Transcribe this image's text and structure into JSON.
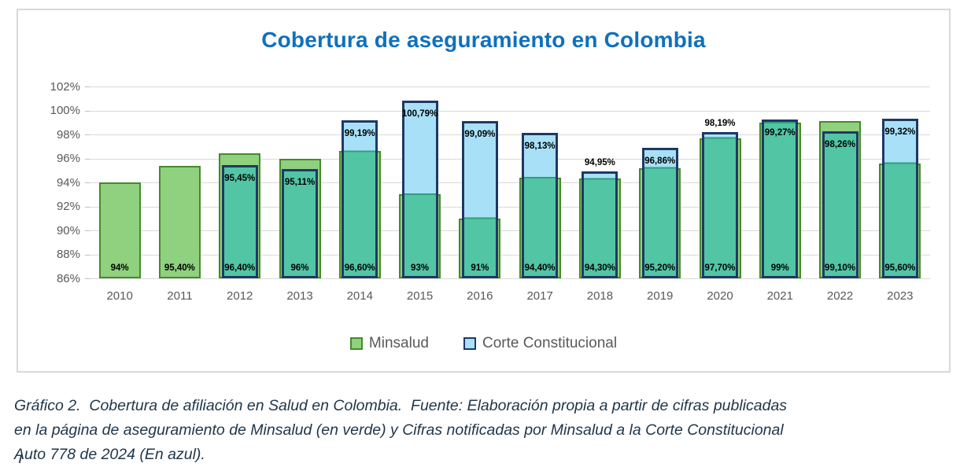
{
  "title": "Cobertura de aseguramiento en Colombia",
  "colors": {
    "title_blue": "#0F71BC",
    "minsalud_fill": "#8FD17E",
    "minsalud_border": "#468A2A",
    "corte_fill_overlap_teal": "#52C5A4",
    "corte_fill_light_blue": "#A8E1F7",
    "corte_border_navy": "#1F3864",
    "overlap_boundary_line": "#2FA07A",
    "gridline": "#D9D9D9",
    "axis_text": "#595959",
    "data_label": "#000000",
    "caption_text": "#20374A",
    "card_border": "#D9D9D9"
  },
  "chart_data": {
    "type": "bar",
    "title": "Cobertura de aseguramiento en Colombia",
    "categories": [
      "2010",
      "2011",
      "2012",
      "2013",
      "2014",
      "2015",
      "2016",
      "2017",
      "2018",
      "2019",
      "2020",
      "2021",
      "2022",
      "2023"
    ],
    "series": [
      {
        "name": "Minsalud",
        "values": [
          94,
          95.4,
          96.4,
          96,
          96.6,
          93,
          91,
          94.4,
          94.3,
          95.2,
          97.7,
          99,
          99.1,
          95.6
        ],
        "labels": [
          "94%",
          "95,40%",
          "96,40%",
          "96%",
          "96,60%",
          "93%",
          "91%",
          "94,40%",
          "94,30%",
          "95,20%",
          "97,70%",
          "99%",
          "99,10%",
          "95,60%"
        ]
      },
      {
        "name": "Corte Constitucional",
        "values": [
          null,
          null,
          95.45,
          95.11,
          99.19,
          100.79,
          99.09,
          98.13,
          94.95,
          96.86,
          98.19,
          99.27,
          98.26,
          99.32
        ],
        "labels": [
          "",
          "",
          "95,45%",
          "95,11%",
          "99,19%",
          "100,79%",
          "99,09%",
          "98,13%",
          "94,95%",
          "96,86%",
          "98,19%",
          "99,27%",
          "98,26%",
          "99,32%"
        ],
        "label_above": [
          false,
          false,
          false,
          false,
          false,
          false,
          false,
          false,
          true,
          false,
          true,
          false,
          false,
          false
        ]
      }
    ],
    "ylim": [
      86,
      102
    ],
    "ytick_step": 2,
    "ytick_labels": [
      "102%",
      "100%",
      "98%",
      "96%",
      "94%",
      "92%",
      "90%",
      "88%",
      "86%"
    ],
    "grid": true,
    "legend_position": "bottom"
  },
  "legend": {
    "items": [
      {
        "label": "Minsalud"
      },
      {
        "label": "Corte Constitucional"
      }
    ]
  },
  "caption": {
    "lines": [
      "Gráfico 2.  Cobertura de afiliación en Salud en Colombia.  Fuente: Elaboración propia a partir de cifras publicadas",
      "en la página de aseguramiento de Minsalud (en verde) y Cifras notificadas por Minsalud a la Corte Constitucional",
      "Auto 778 de 2024 (En azul)."
    ]
  }
}
